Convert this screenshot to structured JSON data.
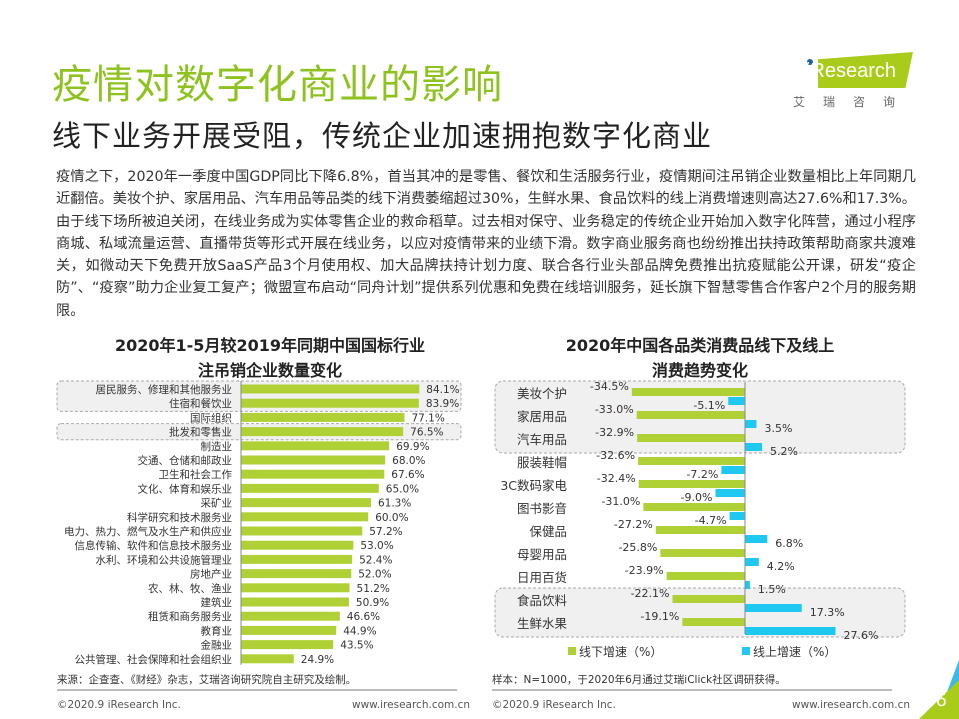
{
  "header": {
    "title": "疫情对数字化商业的影响",
    "subtitle": "线下业务开展受阻，传统企业加速拥抱数字化商业"
  },
  "logo": {
    "text": "iResearch",
    "cn": "艾瑞咨询"
  },
  "body_text": "疫情之下，2020年一季度中国GDP同比下降6.8%，首当其冲的是零售、餐饮和生活服务行业，疫情期间注吊销企业数量相比上年同期几近翻倍。美妆个护、家居用品、汽车用品等品类的线下消费萎缩超过30%，生鲜水果、食品饮料的线上消费增速则高达27.6%和17.3%。由于线下场所被迫关闭，在线业务成为实体零售企业的救命稻草。过去相对保守、业务稳定的传统企业开始加入数字化阵营，通过小程序商城、私域流量运营、直播带货等形式开展在线业务，以应对疫情带来的业绩下滑。数字商业服务商也纷纷推出扶持政策帮助商家共渡难关，如微动天下免费开放SaaS产品3个月使用权、加大品牌扶持计划力度、联合各行业头部品牌免费推出抗疫赋能公开课，研发“疫企防”、“疫察”助力企业复工复产；微盟宣布启动“同舟计划”提供系列优惠和免费在线培训服务，延长旗下智慧零售合作客户2个月的服务期限。",
  "chart_data": [
    {
      "type": "bar",
      "orientation": "horizontal",
      "title_line1": "2020年1-5月较2019年同期中国国标行业",
      "title_line2": "注吊销企业数量变化",
      "categories": [
        "居民服务、修理和其他服务业",
        "住宿和餐饮业",
        "国际组织",
        "批发和零售业",
        "制造业",
        "交通、仓储和邮政业",
        "卫生和社会工作",
        "文化、体育和娱乐业",
        "采矿业",
        "科学研究和技术服务业",
        "电力、热力、燃气及水生产和供应业",
        "信息传输、软件和信息技术服务业",
        "水利、环境和公共设施管理业",
        "房地产业",
        "农、林、牧、渔业",
        "建筑业",
        "租赁和商务服务业",
        "教育业",
        "金融业",
        "公共管理、社会保障和社会组织业"
      ],
      "values": [
        84.1,
        83.9,
        77.1,
        76.5,
        69.9,
        68.0,
        67.6,
        65.0,
        61.3,
        60.0,
        57.2,
        53.0,
        52.4,
        52.0,
        51.2,
        50.9,
        46.6,
        44.9,
        43.5,
        24.9
      ],
      "highlighted": [
        0,
        1,
        3
      ],
      "color": "#b0d136",
      "unit": "%"
    },
    {
      "type": "bar",
      "orientation": "horizontal",
      "title_line1": "2020年中国各品类消费品线下及线上",
      "title_line2": "消费趋势变化",
      "categories": [
        "美妆个护",
        "家居用品",
        "汽车用品",
        "服装鞋帽",
        "3C数码家电",
        "图书影音",
        "保健品",
        "母婴用品",
        "日用百货",
        "食品饮料",
        "生鲜水果"
      ],
      "series": [
        {
          "name": "线下增速（%）",
          "color": "#b0d136",
          "values": [
            -34.5,
            -33.0,
            -32.9,
            -32.6,
            -32.4,
            -31.0,
            -27.2,
            -25.8,
            -23.9,
            -22.1,
            -19.1
          ]
        },
        {
          "name": "线上增速（%）",
          "color": "#1ec8f0",
          "values": [
            -5.1,
            3.5,
            5.2,
            -7.2,
            -9.0,
            -4.7,
            6.8,
            4.2,
            1.5,
            17.3,
            27.6
          ]
        }
      ],
      "highlighted_groups": [
        [
          0,
          2
        ],
        [
          9,
          10
        ]
      ],
      "unit": "%",
      "legend": "bottom"
    }
  ],
  "footer": {
    "source_left": "来源：企查查、《财经》杂志，艾瑞咨询研究院自主研究及绘制。",
    "source_right": "样本：N=1000，于2020年6月通过艾瑞iClick社区调研获得。",
    "copyright_left": "©2020.9 iResearch Inc.",
    "url_left": "www.iresearch.com.cn",
    "copyright_right": "©2020.9 iResearch Inc.",
    "url_right": "www.iresearch.com.cn",
    "page": "6"
  }
}
